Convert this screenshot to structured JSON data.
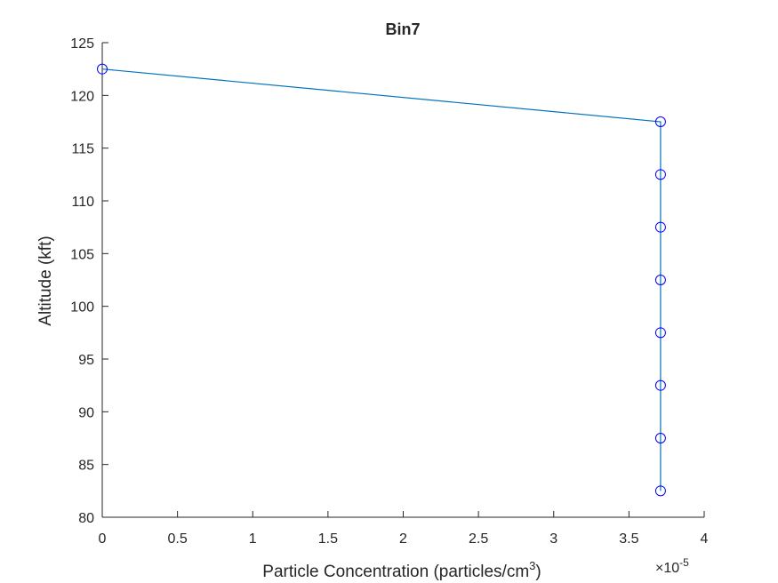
{
  "colors": {
    "line": "#0072bd",
    "marker": "#0000ff",
    "axis": "#262626",
    "background": "#ffffff"
  },
  "chart_data": {
    "type": "line",
    "title": "Bin7",
    "xlabel": "Particle Concentration (particles/cm",
    "xlabel_sup": "3",
    "xlabel_end": ")",
    "ylabel": "Altitude (kft)",
    "x_exponent_base": "×10",
    "x_exponent_power": "-5",
    "xlim": [
      0,
      4
    ],
    "ylim": [
      80,
      125
    ],
    "x_ticks": [
      0,
      0.5,
      1,
      1.5,
      2,
      2.5,
      3,
      3.5,
      4
    ],
    "x_tick_labels": [
      "0",
      "0.5",
      "1",
      "1.5",
      "2",
      "2.5",
      "3",
      "3.5",
      "4"
    ],
    "y_ticks": [
      80,
      85,
      90,
      95,
      100,
      105,
      110,
      115,
      120,
      125
    ],
    "y_tick_labels": [
      "80",
      "85",
      "90",
      "95",
      "100",
      "105",
      "110",
      "115",
      "120",
      "125"
    ],
    "grid": false,
    "marker": "circle",
    "series": [
      {
        "x": [
          0,
          3.71,
          3.71,
          3.71,
          3.71,
          3.71,
          3.71,
          3.71,
          3.71
        ],
        "y": [
          122.5,
          117.5,
          112.5,
          107.5,
          102.5,
          97.5,
          92.5,
          87.5,
          82.5
        ]
      }
    ]
  }
}
